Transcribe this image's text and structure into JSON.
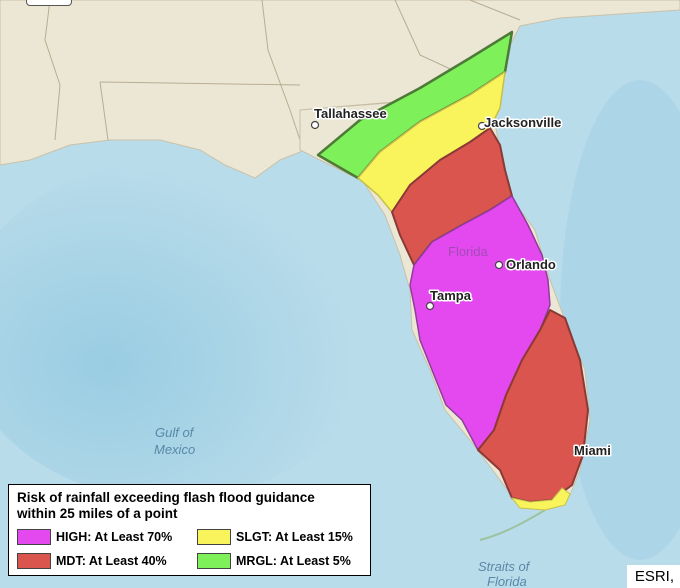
{
  "map": {
    "cities": {
      "tallahassee": "Tallahassee",
      "jacksonville": "Jacksonville",
      "orlando": "Orlando",
      "tampa": "Tampa",
      "miami": "Miami"
    },
    "state_label": "Florida",
    "water": {
      "gulf_line1": "Gulf of",
      "gulf_line2": "Mexico",
      "straits_line1": "Straits of",
      "straits_line2": "Florida"
    },
    "risk_colors": {
      "high": "#e449f0",
      "moderate": "#d9554e",
      "slight": "#f9f45c",
      "marginal": "#7ef05a"
    }
  },
  "legend": {
    "title": "Risk of rainfall exceeding flash flood guidance within 25 miles of a point",
    "items": [
      {
        "label": "HIGH: At Least 70%",
        "color": "#e449f0"
      },
      {
        "label": "SLGT: At Least 15%",
        "color": "#f9f45c"
      },
      {
        "label": "MDT: At Least 40%",
        "color": "#d9554e"
      },
      {
        "label": "MRGL: At Least 5%",
        "color": "#7ef05a"
      }
    ]
  },
  "attribution": "ESRI,"
}
